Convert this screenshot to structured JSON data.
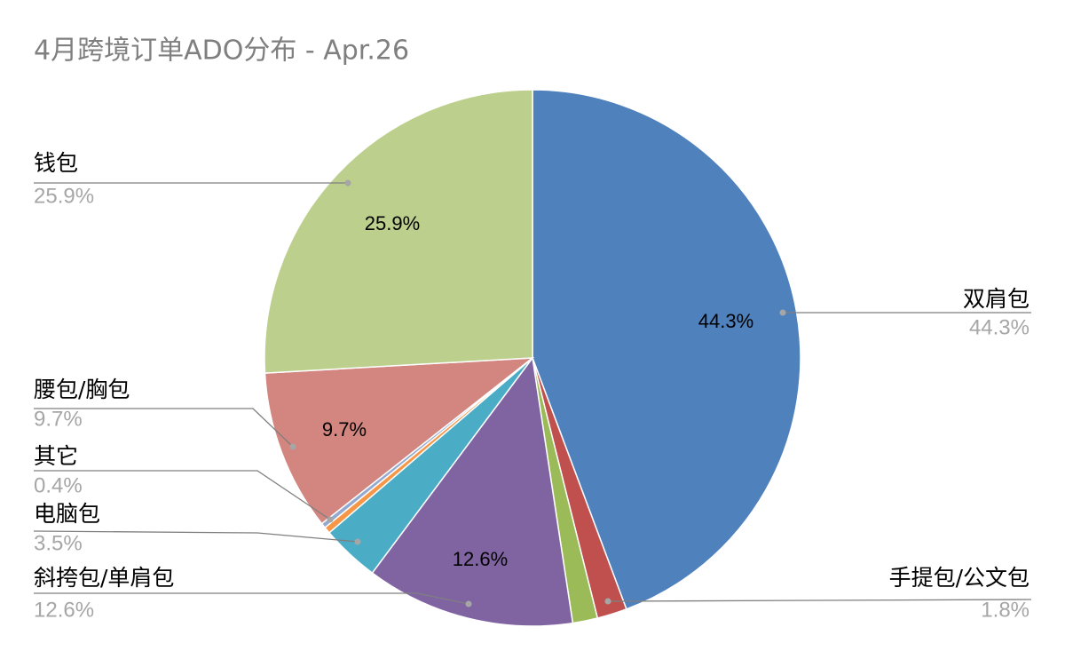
{
  "chart_data": {
    "type": "pie",
    "title": "4月跨境订单ADO分布 - Apr.26",
    "categories": [
      "双肩包",
      "手提包/公文包",
      null,
      "斜挎包/单肩包",
      "电脑包",
      "其它",
      null,
      "腰包/胸包",
      "钱包"
    ],
    "values": [
      44.3,
      1.8,
      1.5,
      12.6,
      3.5,
      0.4,
      0.3,
      9.7,
      25.9
    ],
    "value_labels": [
      "44.3%",
      "1.8%",
      null,
      "12.6%",
      "3.5%",
      "0.4%",
      null,
      "9.7%",
      "25.9%"
    ],
    "colors": [
      "#4f81bd",
      "#c0504d",
      "#9bbb59",
      "#8064a2",
      "#4bacc6",
      "#f79646",
      "#93a9cf",
      "#d3857f",
      "#bccf8c"
    ]
  }
}
